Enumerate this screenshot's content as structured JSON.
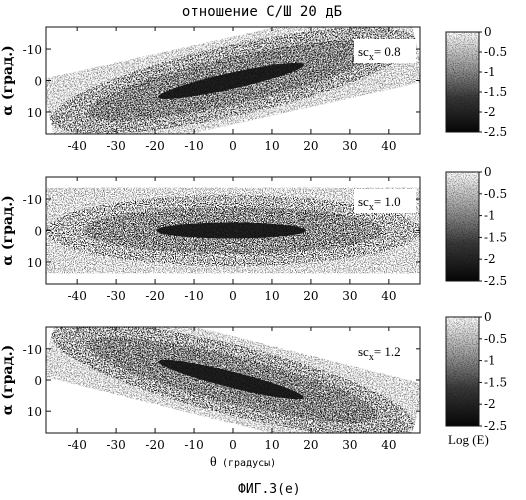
{
  "figure": {
    "title": "отношение С/Ш 20 дБ",
    "caption": "ФИГ.3(е)",
    "xlabel_symbol": "θ",
    "xlabel_unit": "(градусы)",
    "ylabel": "α (град.)",
    "colorbar_label": "Log (E)"
  },
  "colors": {
    "ink": "#111111",
    "paper": "#ffffff"
  },
  "chart_data": [
    {
      "type": "heatmap",
      "annotation": "sc",
      "annotation_subscript": "x",
      "annotation_value": "= 0.8",
      "xlabel": "",
      "ylabel": "α (град.)",
      "xlim": [
        -48,
        48
      ],
      "ylim": [
        -17,
        17
      ],
      "y_inverted": true,
      "x_ticks": [
        -40,
        -30,
        -20,
        -10,
        0,
        10,
        20,
        30,
        40
      ],
      "x_tick_labels": [
        "-40",
        "-30",
        "-20",
        "-10",
        "0",
        "10",
        "20",
        "30",
        "40"
      ],
      "y_ticks": [
        -10,
        0,
        10
      ],
      "y_tick_labels": [
        "-10",
        "0",
        "10"
      ],
      "tilt_deg_per_deg": -0.18,
      "colorbar": {
        "label": "",
        "range": [
          -2.5,
          0
        ],
        "ticks": [
          0,
          -0.5,
          -1,
          -1.5,
          -2,
          -2.5
        ],
        "tick_labels": [
          "0",
          "-0.5",
          "-1",
          "-1.5",
          "-2",
          "-2.5"
        ]
      }
    },
    {
      "type": "heatmap",
      "annotation": "sc",
      "annotation_subscript": "x",
      "annotation_value": "= 1.0",
      "xlabel": "",
      "ylabel": "α (град.)",
      "xlim": [
        -48,
        48
      ],
      "ylim": [
        -17,
        17
      ],
      "y_inverted": true,
      "x_ticks": [
        -40,
        -30,
        -20,
        -10,
        0,
        10,
        20,
        30,
        40
      ],
      "x_tick_labels": [
        "-40",
        "-30",
        "-20",
        "-10",
        "0",
        "10",
        "20",
        "30",
        "40"
      ],
      "y_ticks": [
        -10,
        0,
        10
      ],
      "y_tick_labels": [
        "-10",
        "0",
        "10"
      ],
      "tilt_deg_per_deg": 0.0,
      "colorbar": {
        "label": "",
        "range": [
          -2.5,
          0
        ],
        "ticks": [
          0,
          -0.5,
          -1,
          -1.5,
          -2,
          -2.5
        ],
        "tick_labels": [
          "0",
          "-0.5",
          "-1",
          "-1.5",
          "-2",
          "-2.5"
        ]
      }
    },
    {
      "type": "heatmap",
      "annotation": "sc",
      "annotation_subscript": "x",
      "annotation_value": "= 1.2",
      "xlabel": "θ (градусы)",
      "ylabel": "α (град.)",
      "xlim": [
        -48,
        48
      ],
      "ylim": [
        -17,
        17
      ],
      "y_inverted": true,
      "x_ticks": [
        -40,
        -30,
        -20,
        -10,
        0,
        10,
        20,
        30,
        40
      ],
      "x_tick_labels": [
        "-40",
        "-30",
        "-20",
        "-10",
        "0",
        "10",
        "20",
        "30",
        "40"
      ],
      "y_ticks": [
        -10,
        0,
        10
      ],
      "y_tick_labels": [
        "-10",
        "0",
        "10"
      ],
      "tilt_deg_per_deg": 0.2,
      "colorbar": {
        "label": "Log (E)",
        "range": [
          -2.5,
          0
        ],
        "ticks": [
          0,
          -0.5,
          -1,
          -1.5,
          -2,
          -2.5
        ],
        "tick_labels": [
          "0",
          "-0.5",
          "-1",
          "-1.5",
          "-2",
          "-2.5"
        ]
      }
    }
  ]
}
